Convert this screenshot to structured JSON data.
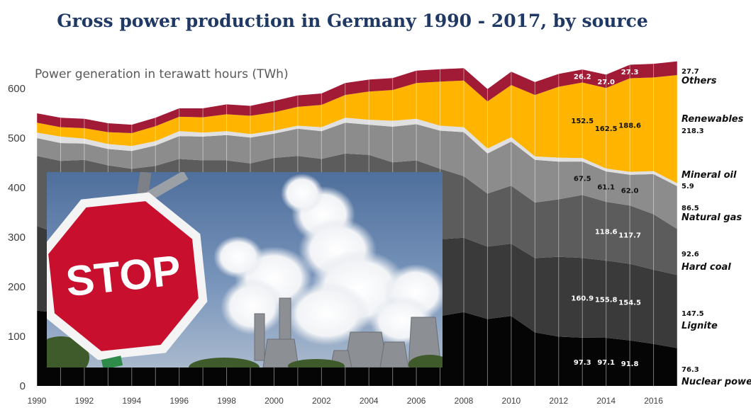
{
  "colors": {
    "Nuclear power": "#050505",
    "Lignite": "#3a3a3a",
    "Hard coal": "#5c5c5c",
    "Natural gas": "#8c8c8c",
    "Mineral oil": "#e0e0e0",
    "Renewables": "#ffb400",
    "Others": "#a11a36"
  },
  "chart_data": {
    "type": "area",
    "stacked": true,
    "title": "Gross power production in Germany 1990 - 2017, by source",
    "ylabel": "Power generation in terawatt hours (TWh)",
    "ylim": [
      0,
      660
    ],
    "yticks": [
      "0",
      "100",
      "200",
      "300",
      "400",
      "500",
      "600"
    ],
    "xticks": [
      "1990",
      "1992",
      "1994",
      "1996",
      "1998",
      "2000",
      "2002",
      "2004",
      "2006",
      "2008",
      "2010",
      "2012",
      "2014",
      "2016"
    ],
    "x": [
      1990,
      1991,
      1992,
      1993,
      1994,
      1995,
      1996,
      1997,
      1998,
      1999,
      2000,
      2001,
      2002,
      2003,
      2004,
      2005,
      2006,
      2007,
      2008,
      2009,
      2010,
      2011,
      2012,
      2013,
      2014,
      2015,
      2016,
      2017
    ],
    "grid": "vertical",
    "series": [
      {
        "name": "Nuclear power",
        "end_label": "76.3",
        "values": [
          152,
          147,
          158,
          153,
          151,
          154,
          161,
          170,
          162,
          170,
          169,
          171,
          165,
          165,
          167,
          163,
          167,
          141,
          149,
          135,
          141,
          108,
          99.5,
          97.3,
          97.1,
          91.8,
          84.9,
          76.3
        ]
      },
      {
        "name": "Lignite",
        "end_label": "147.5",
        "values": [
          171,
          158,
          156,
          148,
          146,
          143,
          144,
          142,
          140,
          136,
          148,
          155,
          158,
          158,
          158,
          154,
          151,
          155,
          150,
          146,
          146,
          150,
          161,
          160.9,
          155.8,
          154.5,
          149.5,
          147.5
        ]
      },
      {
        "name": "Hard coal",
        "end_label": "92.6",
        "values": [
          141,
          149,
          142,
          144,
          141,
          147,
          153,
          143,
          153,
          143,
          143,
          138,
          135,
          146,
          141,
          134,
          137,
          142,
          124,
          107,
          117,
          112,
          116,
          127,
          118.6,
          117.7,
          112,
          92.6
        ]
      },
      {
        "name": "Natural gas",
        "end_label": "86.5",
        "values": [
          36,
          36,
          33,
          33,
          36,
          41,
          46,
          48,
          51,
          52,
          49,
          55,
          56,
          62,
          61,
          72,
          73,
          77,
          89,
          81,
          89,
          86,
          76,
          67.5,
          61.1,
          62.0,
          81,
          86.5
        ]
      },
      {
        "name": "Mineral oil",
        "end_label": "5.9",
        "values": [
          11,
          13,
          10,
          10,
          10,
          9,
          10,
          8,
          8,
          7,
          6,
          6,
          8,
          10,
          10,
          12,
          11,
          10,
          10,
          10,
          9,
          7,
          8,
          7,
          6,
          6,
          6,
          5.9
        ]
      },
      {
        "name": "Renewables",
        "end_label": "218.3",
        "values": [
          20,
          19,
          21,
          24,
          26,
          30,
          29,
          31,
          34,
          37,
          37,
          38,
          45,
          46,
          57,
          62,
          72,
          89,
          94,
          95,
          105,
          124,
          143,
          152.5,
          162.5,
          188.6,
          189,
          218.3
        ]
      },
      {
        "name": "Others",
        "end_label": "27.7",
        "values": [
          19,
          19,
          19,
          18,
          17,
          17,
          17,
          18,
          20,
          20,
          23,
          23,
          23,
          24,
          24,
          24,
          25,
          25,
          25,
          25,
          27,
          26,
          26,
          26.2,
          27.0,
          27.3,
          27.5,
          27.7
        ]
      }
    ],
    "annotations": [
      {
        "series": "Others",
        "x": 2013,
        "label": "26.2"
      },
      {
        "series": "Others",
        "x": 2014,
        "label": "27.0"
      },
      {
        "series": "Others",
        "x": 2015,
        "label": "27.3"
      },
      {
        "series": "Renewables",
        "x": 2013,
        "label": "152.5"
      },
      {
        "series": "Renewables",
        "x": 2014,
        "label": "162.5"
      },
      {
        "series": "Renewables",
        "x": 2015,
        "label": "188.6"
      },
      {
        "series": "Natural gas",
        "x": 2013,
        "label": "67.5"
      },
      {
        "series": "Natural gas",
        "x": 2014,
        "label": "61.1"
      },
      {
        "series": "Natural gas",
        "x": 2015,
        "label": "62.0"
      },
      {
        "series": "Hard coal",
        "x": 2014,
        "label": "118.6"
      },
      {
        "series": "Hard coal",
        "x": 2015,
        "label": "117.7"
      },
      {
        "series": "Lignite",
        "x": 2013,
        "label": "160.9"
      },
      {
        "series": "Lignite",
        "x": 2014,
        "label": "155.8"
      },
      {
        "series": "Lignite",
        "x": 2015,
        "label": "154.5"
      },
      {
        "series": "Nuclear power",
        "x": 2013,
        "label": "97.3"
      },
      {
        "series": "Nuclear power",
        "x": 2014,
        "label": "97.1"
      },
      {
        "series": "Nuclear power",
        "x": 2015,
        "label": "91.8"
      }
    ]
  },
  "photo": {
    "sign_text": "STOP"
  }
}
